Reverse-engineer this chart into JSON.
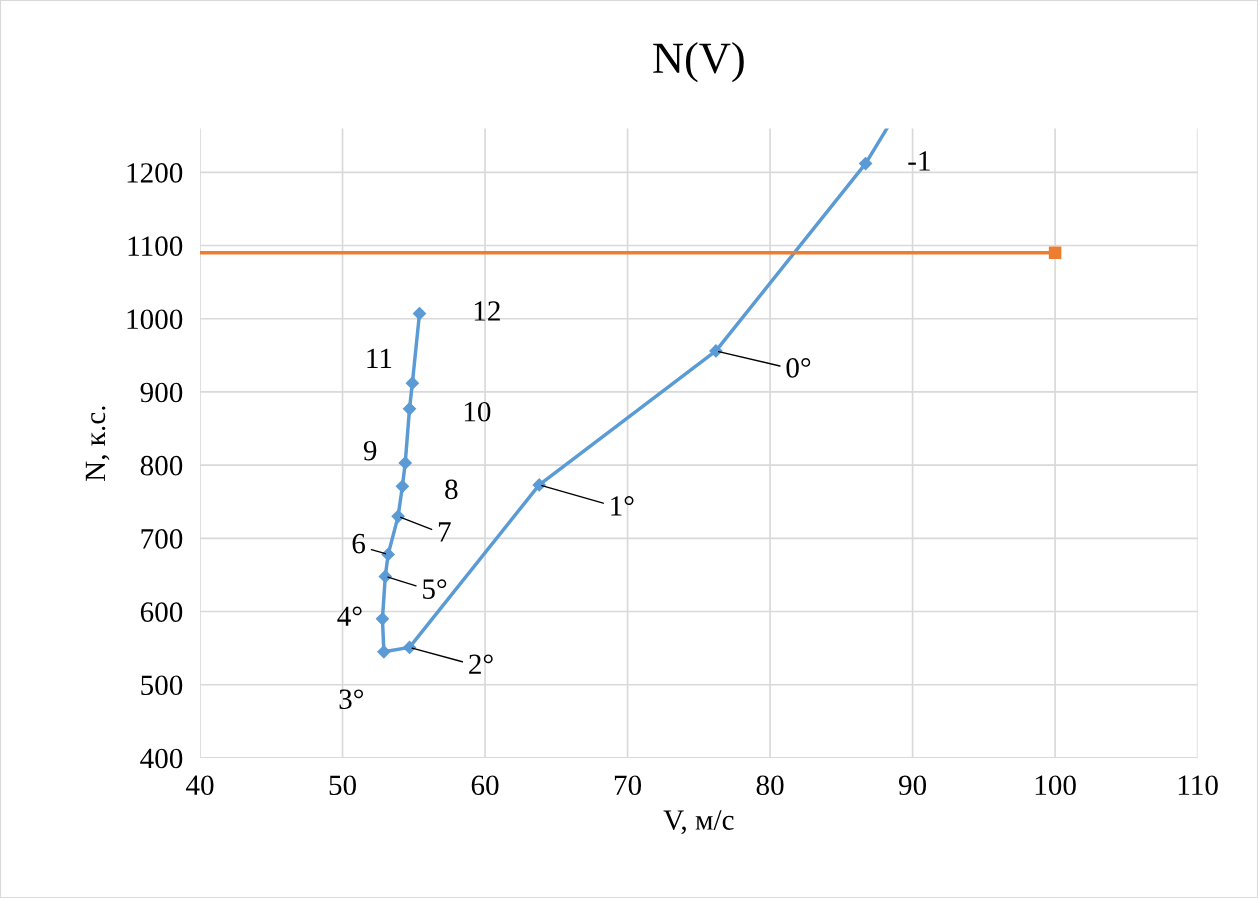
{
  "chart_data": {
    "type": "line",
    "title": "N(V)",
    "xlabel": "V, м/с",
    "ylabel": "N, к.с.",
    "xlim": [
      40,
      110
    ],
    "xticks": [
      40,
      50,
      60,
      70,
      80,
      90,
      100,
      110
    ],
    "ylim": [
      400,
      1260
    ],
    "yticks": [
      400,
      500,
      600,
      700,
      800,
      900,
      1000,
      1100,
      1200
    ],
    "grid": true,
    "series": [
      {
        "color": "#5b9bd5",
        "marker": "diamond",
        "x": [
          88.2,
          86.7,
          76.2,
          63.8,
          54.7,
          52.9,
          52.8,
          53.0,
          53.2,
          53.9,
          54.2,
          54.4,
          54.7,
          54.9,
          55.4
        ],
        "values": [
          1260,
          1212,
          956,
          773,
          551,
          545,
          590,
          648,
          678,
          730,
          771,
          803,
          877,
          912,
          1007
        ]
      },
      {
        "color": "#ed7d31",
        "marker": "square",
        "x": [
          40,
          100
        ],
        "values": [
          1090,
          1090
        ]
      }
    ],
    "annotations": [
      {
        "text": "-1",
        "x": 86.7,
        "y": 1212
      },
      {
        "text": "0°",
        "x": 76.2,
        "y": 956
      },
      {
        "text": "1°",
        "x": 63.8,
        "y": 773
      },
      {
        "text": "2°",
        "x": 54.7,
        "y": 551
      },
      {
        "text": "3°",
        "x": 52.9,
        "y": 545
      },
      {
        "text": "4°",
        "x": 52.8,
        "y": 590
      },
      {
        "text": "5°",
        "x": 53.0,
        "y": 648
      },
      {
        "text": "6",
        "x": 53.2,
        "y": 678
      },
      {
        "text": "7",
        "x": 53.9,
        "y": 730
      },
      {
        "text": "8",
        "x": 54.2,
        "y": 771
      },
      {
        "text": "9",
        "x": 54.4,
        "y": 803
      },
      {
        "text": "10",
        "x": 54.7,
        "y": 877
      },
      {
        "text": "11",
        "x": 54.9,
        "y": 912
      },
      {
        "text": "12",
        "x": 55.4,
        "y": 1007
      }
    ]
  }
}
